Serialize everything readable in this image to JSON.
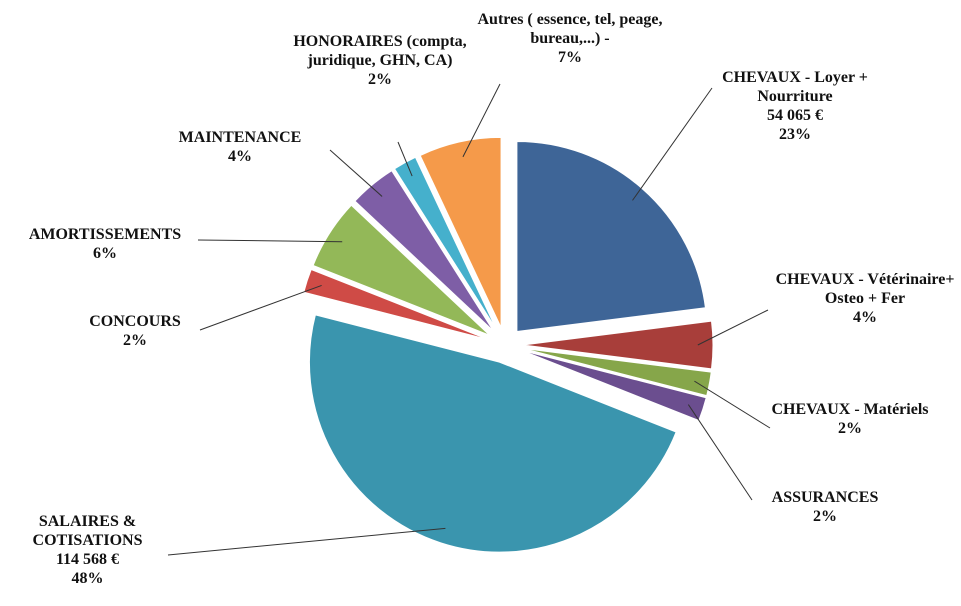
{
  "chart_data": {
    "type": "pie",
    "categories": [
      "CHEVAUX - Loyer + Nourriture",
      "CHEVAUX - Vétérinaire+ Osteo + Fer",
      "CHEVAUX - Matériels",
      "ASSURANCES",
      "SALAIRES & COTISATIONS",
      "CONCOURS",
      "AMORTISSEMENTS",
      "MAINTENANCE",
      "HONORAIRES (compta, juridique, GHN, CA)",
      "Autres ( essence, tel, peage, bureau,...) -"
    ],
    "values": [
      23,
      4,
      2,
      2,
      48,
      2,
      6,
      4,
      2,
      7
    ],
    "value_labels": [
      "23%",
      "4%",
      "2%",
      "2%",
      "48%",
      "2%",
      "6%",
      "4%",
      "2%",
      "7%"
    ],
    "amounts": [
      54065,
      null,
      null,
      null,
      114568,
      null,
      null,
      null,
      null,
      null
    ],
    "amount_labels": [
      "54 065 €",
      null,
      null,
      null,
      "114 568 €",
      null,
      null,
      null,
      null,
      null
    ],
    "colors": [
      "#3e6597",
      "#a83e3a",
      "#86a64a",
      "#6b4e8f",
      "#3a95ae",
      "#cf4b46",
      "#93b858",
      "#7e5ea6",
      "#45b0cc",
      "#f59a4a"
    ]
  }
}
